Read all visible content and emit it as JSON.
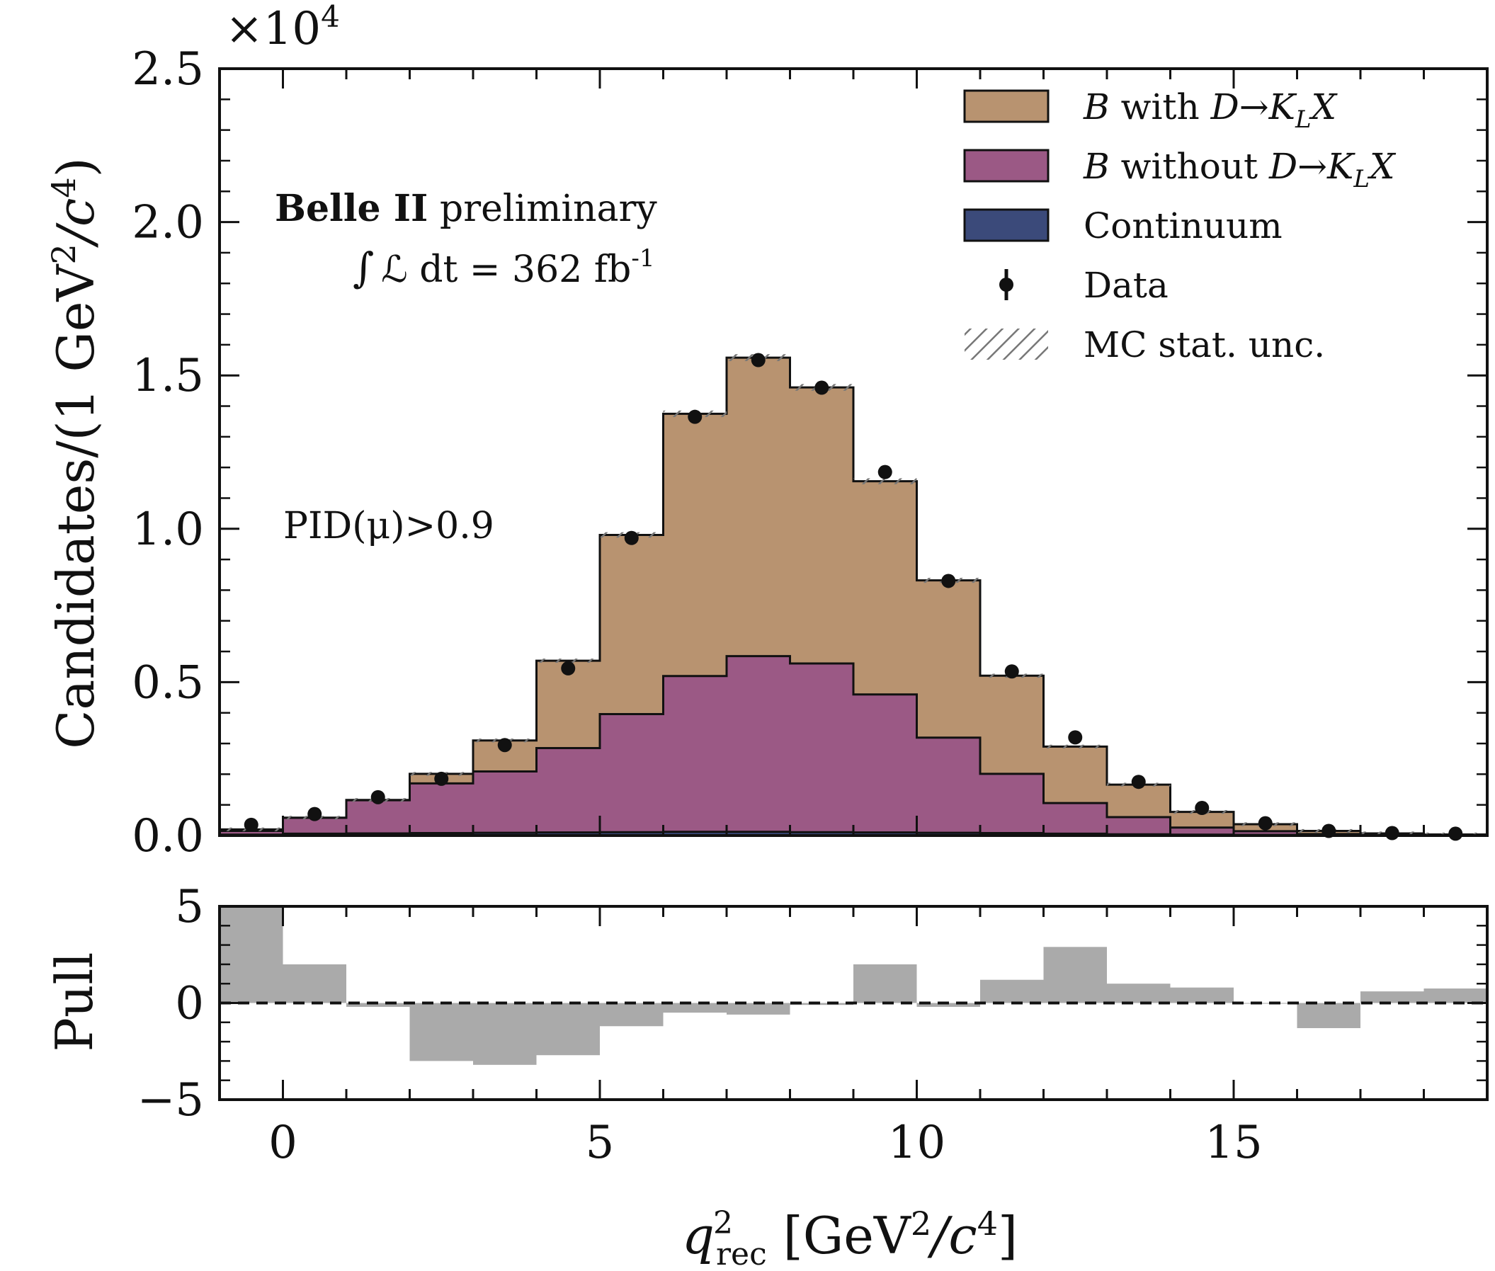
{
  "chart_data": [
    {
      "type": "bar",
      "panel": "main",
      "x_bin_edges": [
        -1,
        0,
        1,
        2,
        3,
        4,
        5,
        6,
        7,
        8,
        9,
        10,
        11,
        12,
        13,
        14,
        15,
        16,
        17,
        18,
        19
      ],
      "xlim": [
        -1,
        19
      ],
      "ylim": [
        0,
        25000
      ],
      "y_scale_label": "×10",
      "y_scale_exponent": "4",
      "ylabel_main": "Candidates/(1 GeV",
      "ylabel_sup1": "2",
      "ylabel_mid": "/c",
      "ylabel_sup2": "4",
      "ylabel_end": ")",
      "yticks": [
        "0.0",
        "0.5",
        "1.0",
        "1.5",
        "2.0",
        "2.5"
      ],
      "ytick_values": [
        0,
        5000,
        10000,
        15000,
        20000,
        25000
      ],
      "stacked": true,
      "series": [
        {
          "name": "Continuum",
          "color": "#3b4a7a",
          "values": [
            30,
            60,
            70,
            80,
            90,
            100,
            110,
            120,
            120,
            110,
            100,
            90,
            80,
            60,
            40,
            30,
            20,
            10,
            5,
            5
          ]
        },
        {
          "name": "B without D→K_L X",
          "color": "#9b5985",
          "values": [
            120,
            520,
            1080,
            1620,
            2000,
            2750,
            3850,
            5080,
            5730,
            5500,
            4500,
            3100,
            1930,
            1000,
            560,
            230,
            120,
            40,
            20,
            10
          ]
        },
        {
          "name": "B with D→K_L X",
          "color": "#b89370",
          "values": [
            50,
            0,
            10,
            310,
            1010,
            2850,
            5840,
            8550,
            9730,
            9000,
            6950,
            5130,
            3200,
            1840,
            1060,
            510,
            230,
            100,
            45,
            20
          ]
        }
      ],
      "data_points": {
        "name": "Data",
        "x": [
          -0.5,
          0.5,
          1.5,
          2.5,
          3.5,
          4.5,
          5.5,
          6.5,
          7.5,
          8.5,
          9.5,
          10.5,
          11.5,
          12.5,
          13.5,
          14.5,
          15.5,
          16.5,
          17.5,
          18.5
        ],
        "y": [
          350,
          700,
          1250,
          1850,
          2950,
          5450,
          9700,
          13650,
          15500,
          14600,
          11850,
          8300,
          5350,
          3200,
          1750,
          900,
          400,
          150,
          80,
          60
        ]
      },
      "legend": {
        "placement": "top-right",
        "entries": [
          {
            "label_pre": "B",
            "label_mid": " with ",
            "label_post": "D→K",
            "label_sub": "L",
            "label_end": "X",
            "kind": "box",
            "color": "#b89370"
          },
          {
            "label_pre": "B",
            "label_mid": " without ",
            "label_post": "D→K",
            "label_sub": "L",
            "label_end": "X",
            "kind": "box",
            "color": "#9b5985"
          },
          {
            "label": "Continuum",
            "kind": "box",
            "color": "#3b4a7a"
          },
          {
            "label": "Data",
            "kind": "point",
            "color": "#111111"
          },
          {
            "label": "MC stat. unc.",
            "kind": "hatch",
            "color": "#777777"
          }
        ]
      },
      "annotations": {
        "experiment_bold": "Belle II",
        "experiment_rest": " preliminary",
        "lumi_prefix": "∫",
        "lumi_symbol": "ℒ",
        "lumi_text": " dt = 362 fb",
        "lumi_sup": "-1",
        "selection": "PID(μ)>0.9"
      }
    },
    {
      "type": "bar",
      "panel": "pull",
      "x_bin_edges": [
        -1,
        0,
        1,
        2,
        3,
        4,
        5,
        6,
        7,
        8,
        9,
        10,
        11,
        12,
        13,
        14,
        15,
        16,
        17,
        18,
        19
      ],
      "values": [
        5.0,
        2.0,
        -0.2,
        -3.0,
        -3.2,
        -2.7,
        -1.2,
        -0.5,
        -0.6,
        -0.1,
        2.0,
        -0.2,
        1.2,
        2.9,
        1.0,
        0.8,
        0.0,
        -1.3,
        0.6,
        0.75
      ],
      "color": "#aaaaaa",
      "ylim": [
        -5,
        5
      ],
      "yticks": [
        "−5",
        "0",
        "5"
      ],
      "ytick_values": [
        -5,
        0,
        5
      ],
      "ylabel": "Pull",
      "xticks": [
        "0",
        "5",
        "10",
        "15"
      ],
      "xtick_values": [
        0,
        5,
        10,
        15
      ],
      "xlabel_q": "q",
      "xlabel_sup": "2",
      "xlabel_sub": "rec",
      "xlabel_rest": "  [GeV",
      "xlabel_sup2": "2",
      "xlabel_mid": "/c",
      "xlabel_sup3": "4",
      "xlabel_end": "]",
      "reference_line": 0
    }
  ]
}
